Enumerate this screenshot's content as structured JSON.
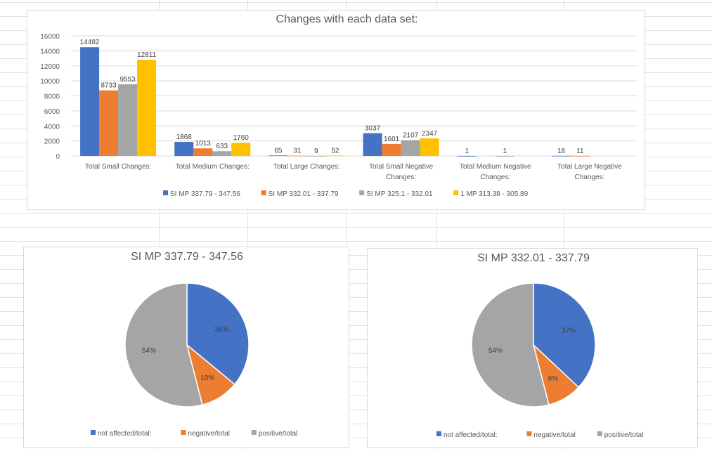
{
  "chart_data": [
    {
      "type": "bar",
      "title": "Changes with each data set:",
      "categories": [
        [
          "Total Small Changes:"
        ],
        [
          "Total Medium Changes:"
        ],
        [
          "Total Large Changes:"
        ],
        [
          "Total Small Negative",
          "Changes:"
        ],
        [
          "Total Medium Negative",
          "Changes:"
        ],
        [
          "Total Large Negative",
          "Changes:"
        ]
      ],
      "series": [
        {
          "name": "SI MP 337.79 - 347.56",
          "color": "#4472c4",
          "values": [
            14482,
            1868,
            65,
            3037,
            1,
            18
          ]
        },
        {
          "name": "SI MP 332.01 - 337.79",
          "color": "#ed7d31",
          "values": [
            8733,
            1013,
            31,
            1601,
            null,
            11
          ]
        },
        {
          "name": "SI MP 325.1 - 332.01",
          "color": "#a5a5a5",
          "values": [
            9553,
            633,
            9,
            2107,
            1,
            null
          ]
        },
        {
          "name": "1 MP 313.38 - 305.89",
          "color": "#ffc000",
          "values": [
            12811,
            1760,
            52,
            2347,
            null,
            null
          ]
        }
      ],
      "yticks": [
        0,
        2000,
        4000,
        6000,
        8000,
        10000,
        12000,
        14000,
        16000
      ],
      "ylim": [
        0,
        16000
      ],
      "grid": true,
      "legend": "bottom"
    },
    {
      "type": "pie",
      "title": "SI MP 337.79 - 347.56",
      "slices": [
        {
          "label": "not affected/total:",
          "value": 36,
          "text": "36%",
          "color": "#4472c4"
        },
        {
          "label": "negative/total",
          "value": 10,
          "text": "10%",
          "color": "#ed7d31"
        },
        {
          "label": "positive/total",
          "value": 54,
          "text": "54%",
          "color": "#a5a5a5"
        }
      ],
      "legend": "bottom"
    },
    {
      "type": "pie",
      "title": "SI MP 332.01 - 337.79",
      "slices": [
        {
          "label": "not affected/total:",
          "value": 37,
          "text": "37%",
          "color": "#4472c4"
        },
        {
          "label": "negative/total",
          "value": 9,
          "text": "9%",
          "color": "#ed7d31"
        },
        {
          "label": "positive/total",
          "value": 54,
          "text": "54%",
          "color": "#a5a5a5"
        }
      ],
      "legend": "bottom"
    }
  ]
}
